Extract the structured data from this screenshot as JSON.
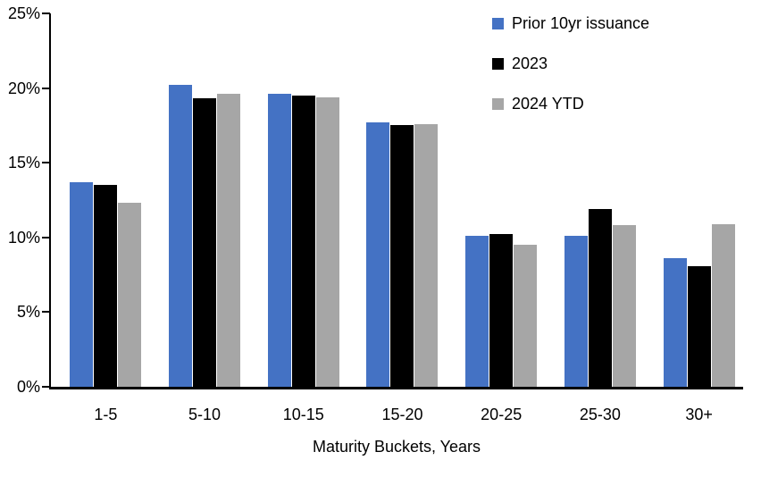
{
  "chart_data": {
    "type": "bar",
    "categories": [
      "1-5",
      "5-10",
      "10-15",
      "15-20",
      "20-25",
      "25-30",
      "30+"
    ],
    "series": [
      {
        "name": "Prior 10yr issuance",
        "color": "#4472C4",
        "values": [
          13.7,
          20.2,
          19.6,
          17.7,
          10.1,
          10.1,
          8.6
        ]
      },
      {
        "name": "2023",
        "color": "#000000",
        "values": [
          13.5,
          19.3,
          19.5,
          17.5,
          10.2,
          11.9,
          8.1
        ]
      },
      {
        "name": "2024 YTD",
        "color": "#A6A6A6",
        "values": [
          12.3,
          19.6,
          19.4,
          17.6,
          9.5,
          10.8,
          10.9
        ]
      }
    ],
    "title": "",
    "xlabel": "Maturity Buckets, Years",
    "ylabel": "",
    "ylim": [
      0,
      25
    ],
    "ytick_step": 5,
    "ytick_labels": [
      "0%",
      "5%",
      "10%",
      "15%",
      "20%",
      "25%"
    ],
    "grid": false,
    "legend_position": "top-right",
    "axis_color": "#000000"
  }
}
